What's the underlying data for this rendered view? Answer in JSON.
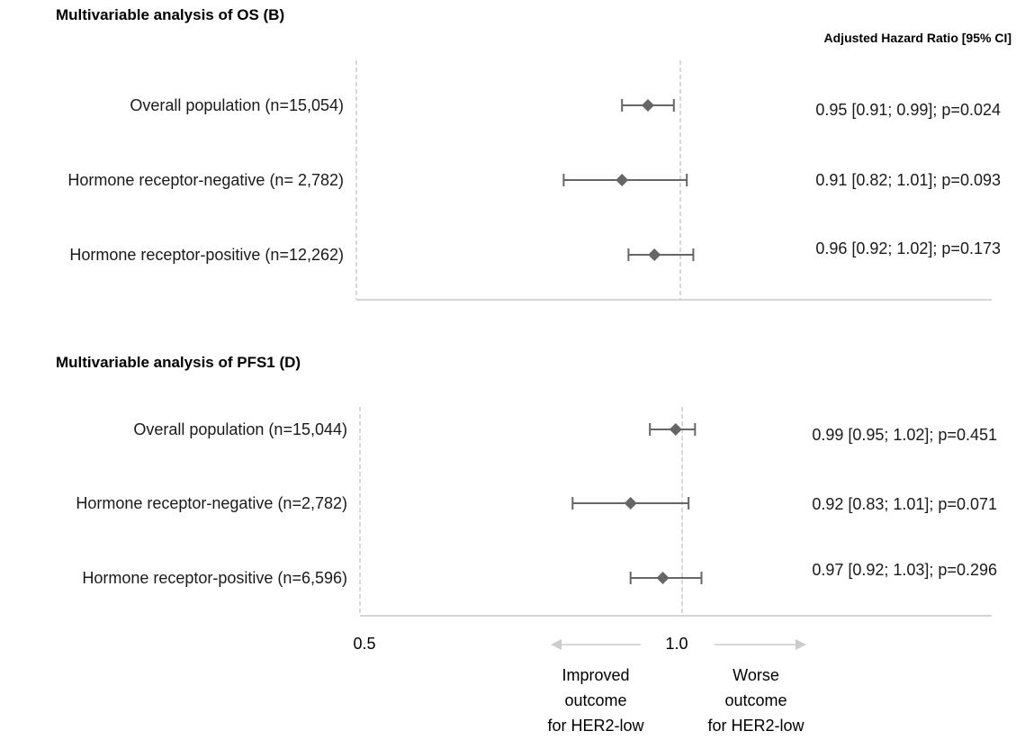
{
  "header": {
    "hr_column": "Adjusted Hazard Ratio [95% CI]"
  },
  "colors": {
    "marker": "#666666",
    "frame": "#c8c8c8",
    "arrow": "#cccccc",
    "text": "#1a1a1a"
  },
  "chart_data": [
    {
      "type": "forest",
      "title": "Multivariable analysis of OS (B)",
      "xlim": [
        0.5,
        1.5
      ],
      "reference": 1.0,
      "rows": [
        {
          "label": "Overall population (n=15,054)",
          "hr": 0.95,
          "lo": 0.91,
          "hi": 0.99,
          "text": "0.95  [0.91; 0.99];  p=0.024"
        },
        {
          "label": "Hormone receptor-negative (n= 2,782)",
          "hr": 0.91,
          "lo": 0.82,
          "hi": 1.01,
          "text": "0.91 [0.82; 1.01];  p=0.093"
        },
        {
          "label": "Hormone receptor-positive (n=12,262)",
          "hr": 0.96,
          "lo": 0.92,
          "hi": 1.02,
          "text": "0.96 [0.92; 1.02];  p=0.173"
        }
      ]
    },
    {
      "type": "forest",
      "title": "Multivariable analysis of PFS1 (D)",
      "xlim": [
        0.5,
        1.5
      ],
      "reference": 1.0,
      "ticks": [
        {
          "value": 0.5,
          "label": "0.5"
        },
        {
          "value": 1.0,
          "label": "1.0"
        }
      ],
      "rows": [
        {
          "label": "Overall population (n=15,044)",
          "hr": 0.99,
          "lo": 0.95,
          "hi": 1.02,
          "text": "0.99 [0.95; 1.02];  p=0.451"
        },
        {
          "label": "Hormone receptor-negative (n=2,782)",
          "hr": 0.92,
          "lo": 0.83,
          "hi": 1.01,
          "text": "0.92 [0.83; 1.01];  p=0.071"
        },
        {
          "label": "Hormone receptor-positive  (n=6,596)",
          "hr": 0.97,
          "lo": 0.92,
          "hi": 1.03,
          "text": "0.97 [0.92; 1.03];  p=0.296"
        }
      ]
    }
  ],
  "annotations": {
    "improved": [
      "Improved",
      "outcome",
      "for HER2-low"
    ],
    "worse": [
      "Worse",
      "outcome",
      "for HER2-low"
    ]
  }
}
